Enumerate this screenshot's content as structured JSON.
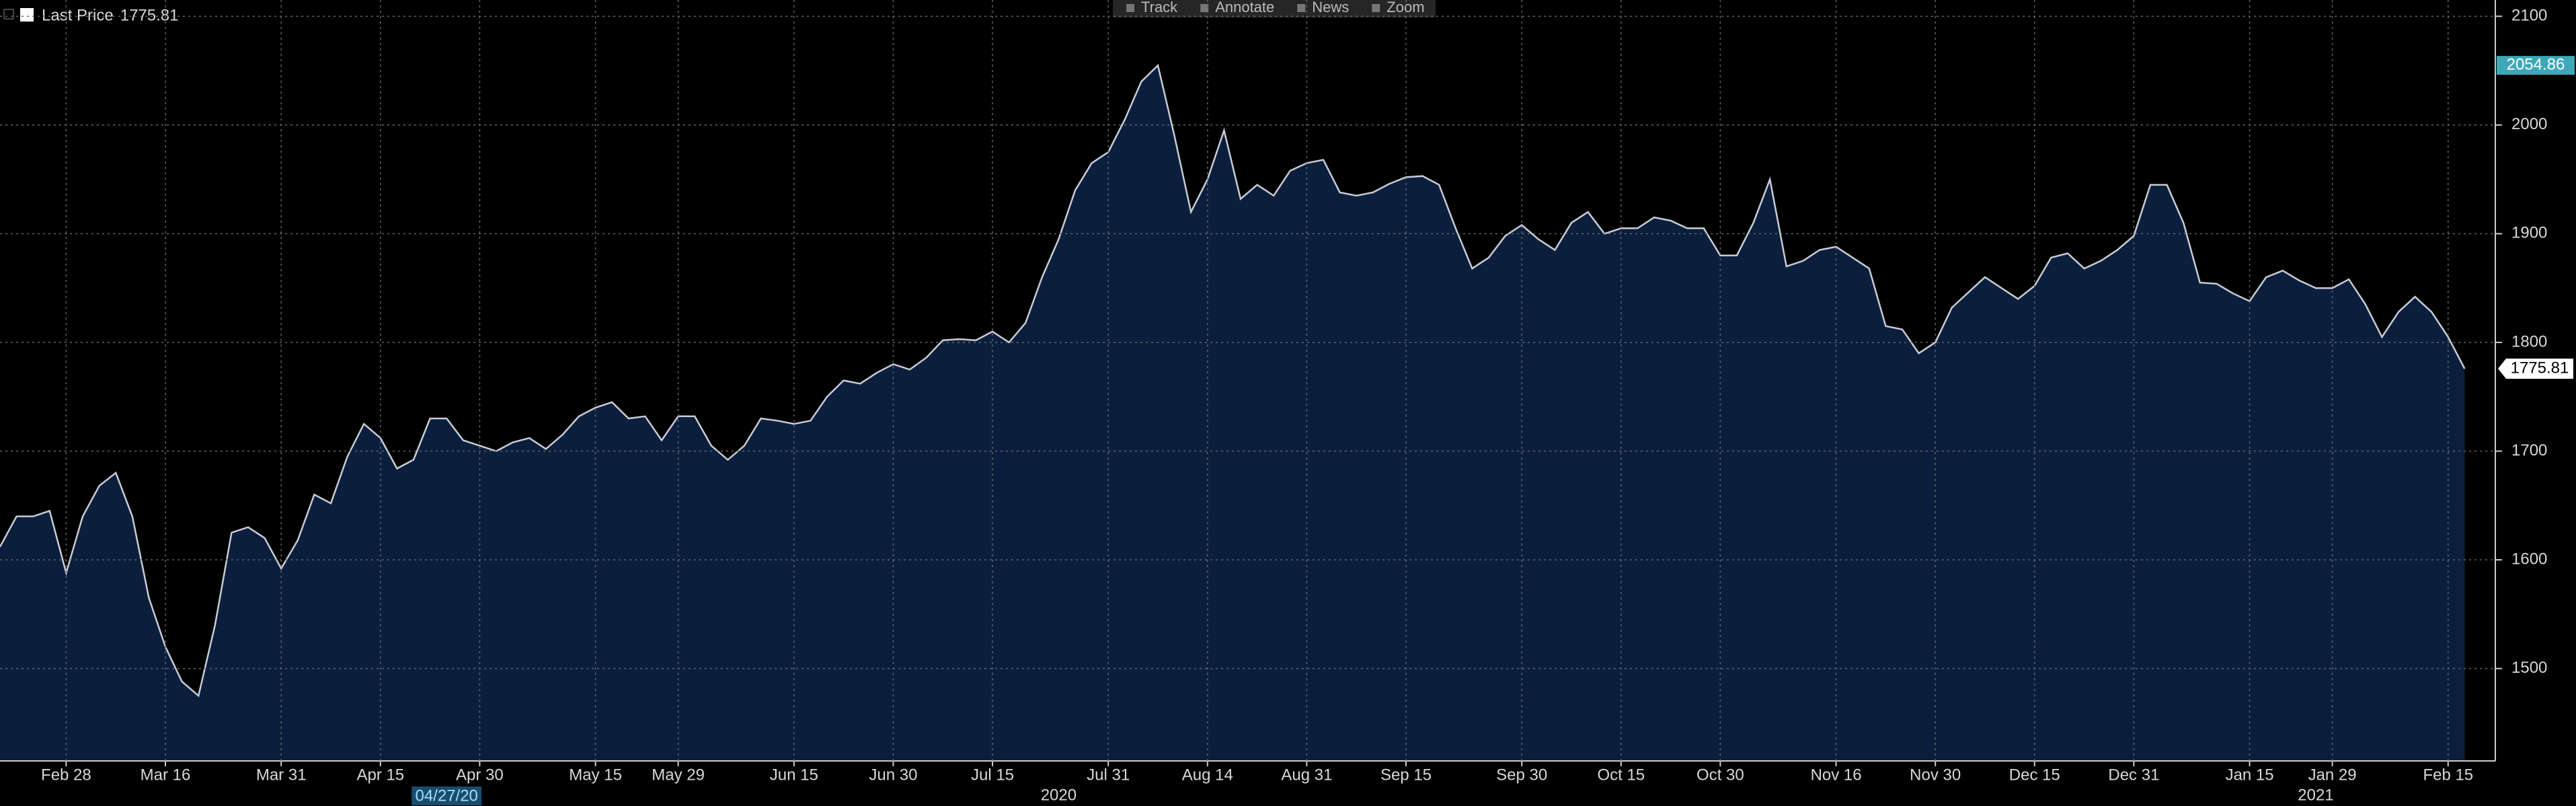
{
  "toolbar": [
    "Track",
    "Annotate",
    "News",
    "Zoom"
  ],
  "chart_data": {
    "type": "area",
    "categories": [
      null,
      null,
      null,
      null,
      "Feb 28",
      null,
      null,
      null,
      null,
      null,
      "Mar 16",
      null,
      null,
      null,
      null,
      null,
      null,
      "Mar 31",
      null,
      null,
      null,
      null,
      null,
      "Apr 15",
      null,
      null,
      null,
      null,
      null,
      "Apr 30",
      null,
      null,
      null,
      null,
      null,
      null,
      "May 15",
      null,
      null,
      null,
      null,
      "May 29",
      null,
      null,
      null,
      null,
      null,
      null,
      "Jun 15",
      null,
      null,
      null,
      null,
      null,
      "Jun 30",
      null,
      null,
      null,
      null,
      null,
      "Jul 15",
      null,
      null,
      null,
      null,
      null,
      null,
      "Jul 31",
      null,
      null,
      null,
      null,
      null,
      "Aug 14",
      null,
      null,
      null,
      null,
      null,
      "Aug 31",
      null,
      null,
      null,
      null,
      null,
      "Sep 15",
      null,
      null,
      null,
      null,
      null,
      null,
      "Sep 30",
      null,
      null,
      null,
      null,
      null,
      "Oct 15",
      null,
      null,
      null,
      null,
      null,
      "Oct 30",
      null,
      null,
      null,
      null,
      null,
      null,
      "Nov 16",
      null,
      null,
      null,
      null,
      null,
      "Nov 30",
      null,
      null,
      null,
      null,
      null,
      "Dec 15",
      null,
      null,
      null,
      null,
      null,
      "Dec 31",
      null,
      null,
      null,
      null,
      null,
      null,
      "Jan 15",
      null,
      null,
      null,
      null,
      "Jan 29",
      null,
      null,
      null,
      null,
      null,
      null,
      "Feb 15",
      null
    ],
    "series": [
      {
        "name": "Last Price",
        "color": "#c9ccd6",
        "fill": "#0b1f3d",
        "values": [
          1612,
          1640,
          1640,
          1645,
          1588,
          1640,
          1668,
          1680,
          1640,
          1565,
          1520,
          1488,
          1475,
          1540,
          1625,
          1630,
          1620,
          1592,
          1618,
          1660,
          1652,
          1695,
          1725,
          1712,
          1684,
          1692,
          1730,
          1730,
          1710,
          1705,
          1700,
          1708,
          1712,
          1702,
          1715,
          1732,
          1740,
          1745,
          1730,
          1732,
          1710,
          1732,
          1732,
          1705,
          1692,
          1705,
          1730,
          1728,
          1725,
          1728,
          1750,
          1765,
          1762,
          1772,
          1780,
          1775,
          1786,
          1802,
          1803,
          1802,
          1810,
          1800,
          1818,
          1860,
          1895,
          1940,
          1965,
          1975,
          2005,
          2040,
          2054.86,
          1990,
          1920,
          1950,
          1995,
          1932,
          1945,
          1935,
          1958,
          1965,
          1968,
          1938,
          1935,
          1938,
          1946,
          1952,
          1953,
          1945,
          1905,
          1868,
          1878,
          1898,
          1908,
          1895,
          1885,
          1910,
          1920,
          1900,
          1905,
          1905,
          1915,
          1912,
          1905,
          1905,
          1880,
          1880,
          1910,
          1950,
          1870,
          1875,
          1885,
          1888,
          1878,
          1868,
          1815,
          1812,
          1790,
          1800,
          1832,
          1846,
          1860,
          1850,
          1840,
          1852,
          1878,
          1882,
          1868,
          1875,
          1885,
          1898,
          1945,
          1945,
          1910,
          1855,
          1854,
          1845,
          1838,
          1860,
          1866,
          1857,
          1850,
          1850,
          1858,
          1835,
          1805,
          1828,
          1842,
          1828,
          1805,
          1775.81
        ]
      }
    ],
    "ylim": [
      1415,
      2115
    ],
    "yticks": [
      1500,
      1600,
      1700,
      1800,
      1900,
      2000,
      2100
    ],
    "grid": true,
    "year_labels": [
      {
        "text": "2020",
        "at": 64
      },
      {
        "text": "2021",
        "at": 140
      }
    ],
    "cursor_label": {
      "text": "04/27/20",
      "at": 27
    },
    "max_marker": 70,
    "last_marker": 149
  }
}
